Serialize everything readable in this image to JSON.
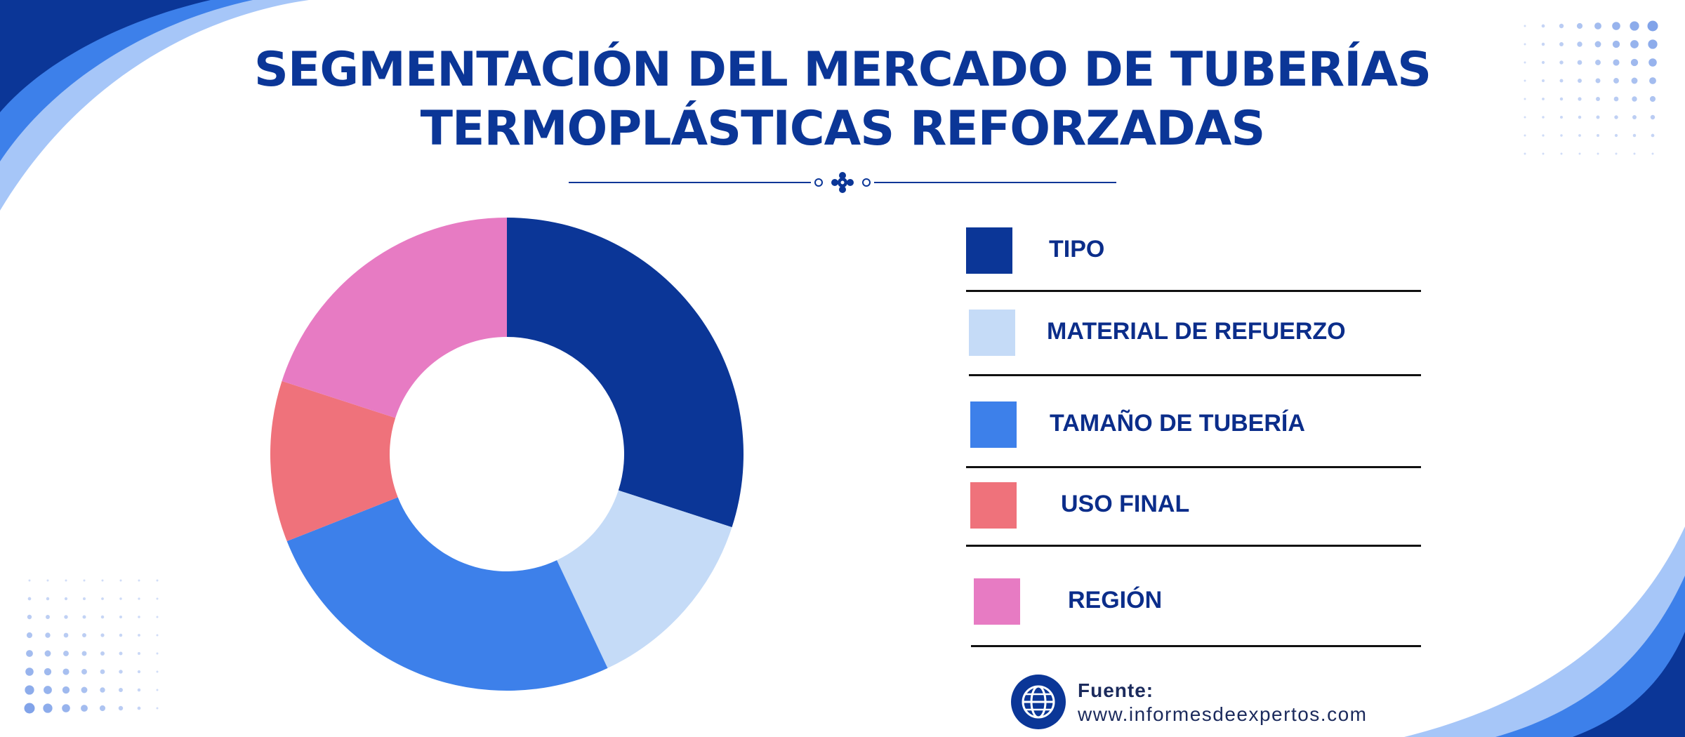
{
  "title": {
    "line1": "SEGMENTACIÓN DEL MERCADO DE TUBERÍAS",
    "line2": "TERMOPLÁSTICAS REFORZADAS"
  },
  "chart_data": {
    "type": "pie",
    "title": "SEGMENTACIÓN DEL MERCADO DE TUBERÍAS TERMOPLÁSTICAS REFORZADAS",
    "categories": [
      "TIPO",
      "MATERIAL DE REFUERZO",
      "TAMAÑO DE TUBERÍA",
      "USO FINAL",
      "REGIÓN"
    ],
    "values": [
      30,
      13,
      26,
      11,
      20
    ],
    "colors": [
      "#0b3697",
      "#c5dbf7",
      "#3d80ea",
      "#ef727b",
      "#e77bc3"
    ],
    "donut": true,
    "legend_position": "right"
  },
  "source": {
    "label": "Fuente:",
    "url": "www.informesdeexpertos.com",
    "icon": "globe-icon"
  },
  "colors": {
    "title": "#0b3697",
    "accent_dark": "#0b3697",
    "accent_mid": "#3d80ea",
    "accent_light": "#a6c6f8"
  }
}
